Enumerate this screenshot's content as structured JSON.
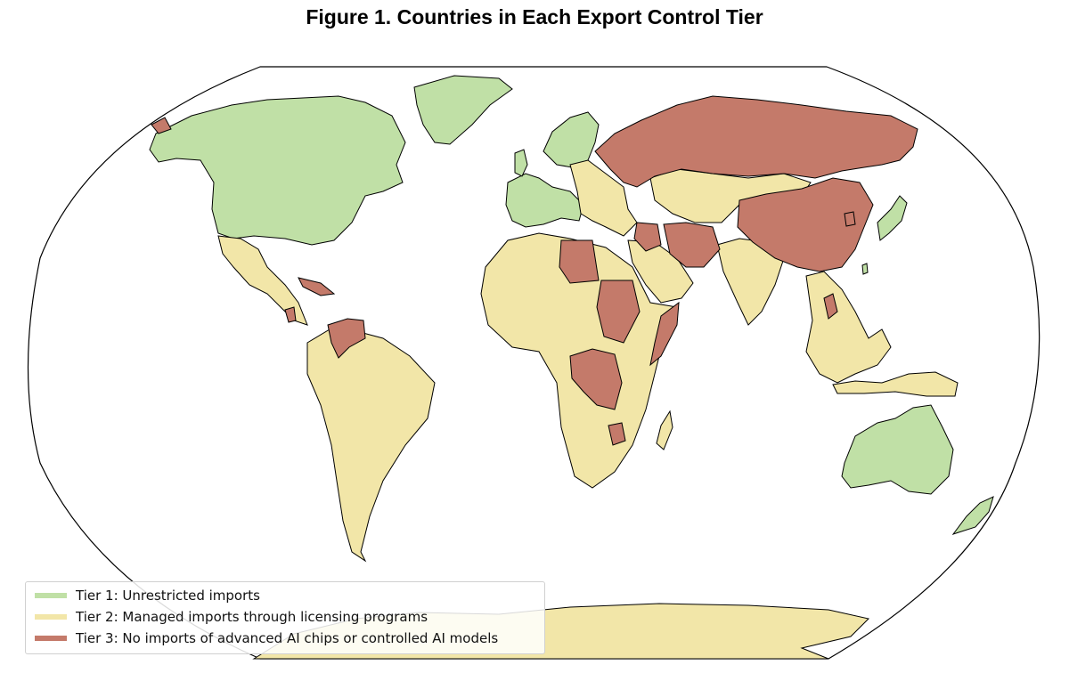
{
  "title": "Figure 1. Countries in Each Export Control Tier",
  "colors": {
    "tier1": "#c0e0a6",
    "tier2": "#f2e6a8",
    "tier3": "#c47a6a",
    "border": "#000000",
    "ocean": "#ffffff"
  },
  "legend": {
    "items": [
      {
        "label": "Tier 1: Unrestricted imports",
        "color": "#c0e0a6"
      },
      {
        "label": "Tier 2: Managed imports through licensing programs",
        "color": "#f2e6a8"
      },
      {
        "label": "Tier 3: No imports of advanced AI chips or controlled AI models",
        "color": "#c47a6a"
      }
    ]
  }
}
